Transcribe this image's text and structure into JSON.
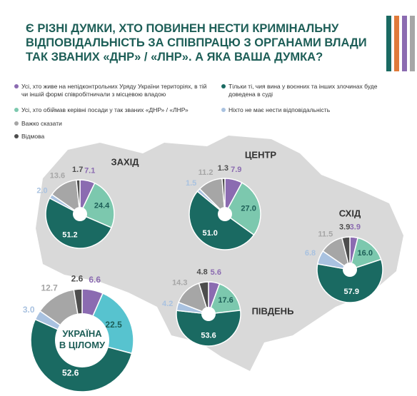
{
  "title_lines": [
    "Є РІЗНІ ДУМКИ, ХТО ПОВИНЕН НЕСТИ КРИМІНАЛЬНУ",
    "ВІДПОВІДАЛЬНІСТЬ ЗА СПІВПРАЦЮ З ОРГАНАМИ ВЛАДИ",
    "ТАК ЗВАНИХ «ДНР» / «ЛНР». А ЯКА ВАША ДУМКА?"
  ],
  "legend": {
    "labels": [
      "Усі, хто живе на непідконтрольних Уряду України територіях, в тій чи іншій формі співробітничали з місцевою владою",
      "Усі, хто обіймав керівні посади у так званих «ДНР» / «ЛНР»",
      "Тільки ті, чия вина у воєнних та інших злочинах буде доведена в суді",
      "Ніхто не має нести відповідальність",
      "Важко сказати",
      "Відмова"
    ],
    "colors": [
      "#8b6bb1",
      "#7cc8ae",
      "#1a6a62",
      "#a9c2e0",
      "#a6a6a6",
      "#4d4d4d"
    ]
  },
  "chart_data": [
    {
      "type": "pie",
      "title": "ЗАХІД",
      "values": [
        7.1,
        24.4,
        51.2,
        2.0,
        13.6,
        1.7
      ],
      "value_labels": [
        "7.1",
        "24.4",
        "51.2",
        "2.0",
        "13.6",
        "1.7"
      ],
      "colors": [
        "#8b6bb1",
        "#7cc8ae",
        "#1a6a62",
        "#a9c2e0",
        "#a6a6a6",
        "#4d4d4d"
      ]
    },
    {
      "type": "pie",
      "title": "ЦЕНТР",
      "values": [
        7.9,
        27.0,
        51.0,
        1.5,
        11.2,
        1.3
      ],
      "value_labels": [
        "7.9",
        "27.0",
        "51.0",
        "1.5",
        "11.2",
        "1.3"
      ],
      "colors": [
        "#8b6bb1",
        "#7cc8ae",
        "#1a6a62",
        "#a9c2e0",
        "#a6a6a6",
        "#4d4d4d"
      ]
    },
    {
      "type": "pie",
      "title": "СХІД",
      "values": [
        3.9,
        16.0,
        57.9,
        6.8,
        11.5,
        3.9
      ],
      "value_labels": [
        "3.9",
        "16.0",
        "57.9",
        "6.8",
        "11.5",
        "3.9"
      ],
      "colors": [
        "#8b6bb1",
        "#7cc8ae",
        "#1a6a62",
        "#a9c2e0",
        "#a6a6a6",
        "#4d4d4d"
      ]
    },
    {
      "type": "pie",
      "title": "ПІВДЕНЬ",
      "values": [
        5.6,
        17.6,
        53.6,
        4.2,
        14.3,
        4.8
      ],
      "value_labels": [
        "5.6",
        "17.6",
        "53.6",
        "4.2",
        "14.3",
        "4.8"
      ],
      "colors": [
        "#8b6bb1",
        "#7cc8ae",
        "#1a6a62",
        "#a9c2e0",
        "#a6a6a6",
        "#4d4d4d"
      ]
    },
    {
      "type": "pie",
      "title": "УКРАЇНА В ЦІЛОМУ",
      "values": [
        6.6,
        22.5,
        52.6,
        3.0,
        12.7,
        2.6
      ],
      "value_labels": [
        "6.6",
        "22.5",
        "52.6",
        "3.0",
        "12.7",
        "2.6"
      ],
      "colors": [
        "#8b6bb1",
        "#57c3cf",
        "#1a6a62",
        "#a9c2e0",
        "#a6a6a6",
        "#4d4d4d"
      ]
    }
  ]
}
